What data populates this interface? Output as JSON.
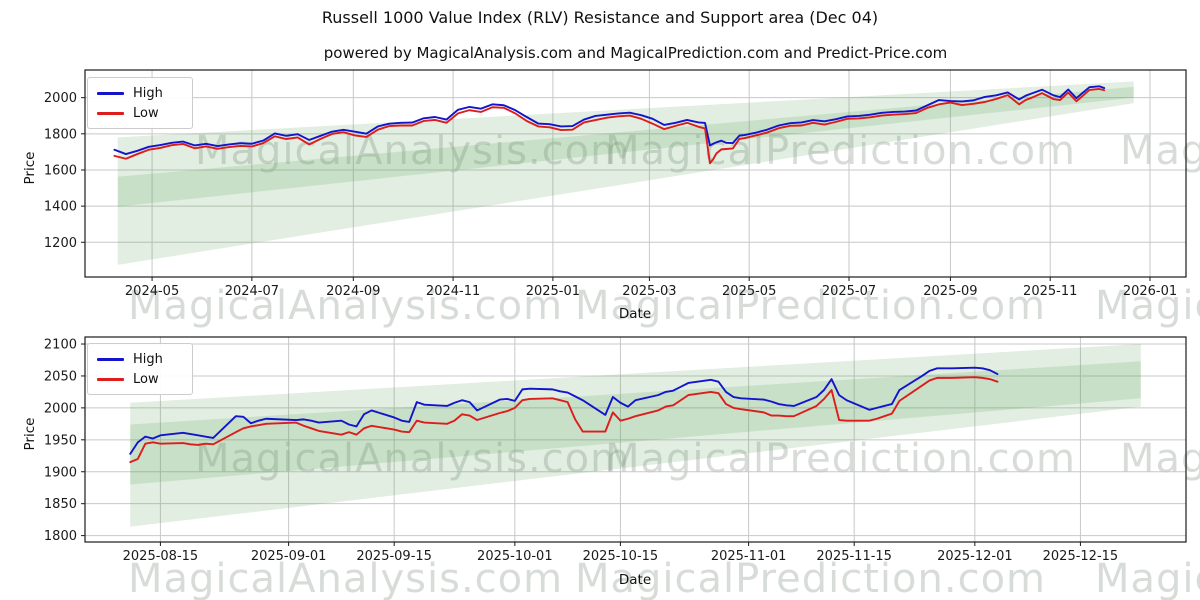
{
  "header": {
    "title": "Russell 1000 Value Index (RLV) Resistance and Support area (Dec 04)",
    "subtitle": "powered by MagicalAnalysis.com and MagicalPrediction.com and Predict-Price.com"
  },
  "watermarks": {
    "left": "MagicalAnalysis.com",
    "right": "MagicalPrediction.com",
    "partial": "MagicalAnalysis.com"
  },
  "legend": {
    "high": "High",
    "low": "Low"
  },
  "colors": {
    "high": "#1414cc",
    "low": "#dd1c1c",
    "band": "rgba(88,158,88,0.18)",
    "grid": "#c8c8c8",
    "axis": "#1a1a1a",
    "watermark": "rgba(125,140,125,0.30)"
  },
  "chart_data": [
    {
      "type": "line",
      "name": "overview",
      "xlabel": "Date",
      "ylabel": "Price",
      "legend_position": "upper left",
      "grid": true,
      "xlim": [
        "2024-03-21",
        "2026-01-23"
      ],
      "ylim": [
        1008,
        2153
      ],
      "x_ticks": [
        "2024-05",
        "2024-07",
        "2024-09",
        "2024-11",
        "2025-01",
        "2025-03",
        "2025-05",
        "2025-07",
        "2025-09",
        "2025-11",
        "2026-01"
      ],
      "x_tick_dates": [
        "2024-05-01",
        "2024-07-01",
        "2024-09-01",
        "2024-11-01",
        "2025-01-01",
        "2025-03-01",
        "2025-05-01",
        "2025-07-01",
        "2025-09-01",
        "2025-11-01",
        "2026-01-01"
      ],
      "y_ticks": [
        1200,
        1400,
        1600,
        1800,
        2000
      ],
      "x": [
        "2024-04-08",
        "2024-04-15",
        "2024-04-22",
        "2024-04-29",
        "2024-05-06",
        "2024-05-13",
        "2024-05-20",
        "2024-05-27",
        "2024-06-03",
        "2024-06-10",
        "2024-06-17",
        "2024-06-24",
        "2024-07-01",
        "2024-07-08",
        "2024-07-15",
        "2024-07-22",
        "2024-07-29",
        "2024-08-05",
        "2024-08-12",
        "2024-08-19",
        "2024-08-26",
        "2024-09-02",
        "2024-09-09",
        "2024-09-16",
        "2024-09-23",
        "2024-09-30",
        "2024-10-07",
        "2024-10-14",
        "2024-10-21",
        "2024-10-28",
        "2024-11-04",
        "2024-11-11",
        "2024-11-18",
        "2024-11-25",
        "2024-12-02",
        "2024-12-09",
        "2024-12-16",
        "2024-12-23",
        "2024-12-30",
        "2025-01-06",
        "2025-01-13",
        "2025-01-20",
        "2025-01-27",
        "2025-02-03",
        "2025-02-10",
        "2025-02-17",
        "2025-02-24",
        "2025-03-03",
        "2025-03-10",
        "2025-03-17",
        "2025-03-24",
        "2025-03-31",
        "2025-04-04",
        "2025-04-07",
        "2025-04-09",
        "2025-04-11",
        "2025-04-14",
        "2025-04-17",
        "2025-04-21",
        "2025-04-25",
        "2025-04-28",
        "2025-05-05",
        "2025-05-12",
        "2025-05-19",
        "2025-05-26",
        "2025-06-02",
        "2025-06-09",
        "2025-06-16",
        "2025-06-23",
        "2025-06-30",
        "2025-07-07",
        "2025-07-14",
        "2025-07-21",
        "2025-07-28",
        "2025-08-04",
        "2025-08-11",
        "2025-08-18",
        "2025-08-25",
        "2025-09-01",
        "2025-09-08",
        "2025-09-15",
        "2025-09-22",
        "2025-09-29",
        "2025-10-06",
        "2025-10-13",
        "2025-10-17",
        "2025-10-20",
        "2025-10-27",
        "2025-11-03",
        "2025-11-07",
        "2025-11-12",
        "2025-11-17",
        "2025-11-21",
        "2025-11-25",
        "2025-12-01",
        "2025-12-04"
      ],
      "series": [
        {
          "name": "High",
          "color_key": "high",
          "values": [
            1712,
            1688,
            1706,
            1728,
            1738,
            1750,
            1757,
            1736,
            1745,
            1732,
            1741,
            1748,
            1745,
            1763,
            1802,
            1789,
            1798,
            1766,
            1789,
            1812,
            1822,
            1812,
            1801,
            1841,
            1856,
            1861,
            1862,
            1886,
            1893,
            1879,
            1933,
            1949,
            1939,
            1963,
            1958,
            1931,
            1893,
            1857,
            1853,
            1841,
            1843,
            1879,
            1899,
            1906,
            1913,
            1917,
            1903,
            1883,
            1849,
            1861,
            1877,
            1863,
            1860,
            1736,
            1745,
            1753,
            1762,
            1750,
            1749,
            1790,
            1793,
            1806,
            1823,
            1846,
            1859,
            1863,
            1876,
            1869,
            1881,
            1896,
            1899,
            1906,
            1916,
            1921,
            1923,
            1929,
            1958,
            1987,
            1981,
            1979,
            1985,
            2004,
            2013,
            2029,
            1990,
            2011,
            2021,
            2044,
            2013,
            2003,
            2045,
            1997,
            2028,
            2058,
            2063,
            2053
          ]
        },
        {
          "name": "Low",
          "color_key": "low",
          "values": [
            1678,
            1662,
            1688,
            1712,
            1722,
            1737,
            1744,
            1720,
            1730,
            1717,
            1727,
            1733,
            1730,
            1749,
            1786,
            1771,
            1780,
            1741,
            1772,
            1799,
            1809,
            1791,
            1783,
            1823,
            1843,
            1846,
            1846,
            1871,
            1877,
            1861,
            1913,
            1931,
            1921,
            1947,
            1944,
            1913,
            1871,
            1841,
            1836,
            1821,
            1823,
            1863,
            1876,
            1889,
            1897,
            1901,
            1883,
            1856,
            1826,
            1844,
            1861,
            1839,
            1830,
            1637,
            1660,
            1692,
            1714,
            1716,
            1719,
            1772,
            1776,
            1791,
            1807,
            1831,
            1844,
            1846,
            1861,
            1851,
            1866,
            1883,
            1885,
            1891,
            1901,
            1906,
            1909,
            1915,
            1944,
            1963,
            1973,
            1959,
            1966,
            1976,
            1993,
            2014,
            1963,
            1987,
            1997,
            2025,
            1992,
            1987,
            2028,
            1980,
            2011,
            2043,
            2048,
            2041
          ]
        }
      ],
      "bands": [
        {
          "name": "support-area",
          "x": [
            "2024-04-10",
            "2025-12-22"
          ],
          "bottom": [
            1075,
            1970
          ],
          "top": [
            1563,
            2060
          ]
        },
        {
          "name": "resistance-area",
          "x": [
            "2024-04-10",
            "2025-12-22"
          ],
          "bottom": [
            1397,
            2000
          ],
          "top": [
            1780,
            2090
          ]
        }
      ]
    },
    {
      "type": "line",
      "name": "recent-detail",
      "xlabel": "Date",
      "ylabel": "Price",
      "legend_position": "upper left",
      "grid": true,
      "xlim": [
        "2025-08-05",
        "2025-12-29"
      ],
      "ylim": [
        1790,
        2111
      ],
      "x_ticks": [
        "2025-08-15",
        "2025-09-01",
        "2025-09-15",
        "2025-10-01",
        "2025-10-15",
        "2025-11-01",
        "2025-11-15",
        "2025-12-01",
        "2025-12-15"
      ],
      "x_tick_dates": [
        "2025-08-15",
        "2025-09-01",
        "2025-09-15",
        "2025-10-01",
        "2025-10-15",
        "2025-11-01",
        "2025-11-15",
        "2025-12-01",
        "2025-12-15"
      ],
      "y_ticks": [
        1800,
        1850,
        1900,
        1950,
        2000,
        2050,
        2100
      ],
      "x": [
        "2025-08-11",
        "2025-08-12",
        "2025-08-13",
        "2025-08-14",
        "2025-08-15",
        "2025-08-18",
        "2025-08-19",
        "2025-08-20",
        "2025-08-21",
        "2025-08-22",
        "2025-08-25",
        "2025-08-26",
        "2025-08-27",
        "2025-08-28",
        "2025-08-29",
        "2025-09-02",
        "2025-09-03",
        "2025-09-04",
        "2025-09-05",
        "2025-09-08",
        "2025-09-09",
        "2025-09-10",
        "2025-09-11",
        "2025-09-12",
        "2025-09-15",
        "2025-09-16",
        "2025-09-17",
        "2025-09-18",
        "2025-09-19",
        "2025-09-22",
        "2025-09-23",
        "2025-09-24",
        "2025-09-25",
        "2025-09-26",
        "2025-09-29",
        "2025-09-30",
        "2025-10-01",
        "2025-10-02",
        "2025-10-03",
        "2025-10-06",
        "2025-10-07",
        "2025-10-08",
        "2025-10-09",
        "2025-10-10",
        "2025-10-13",
        "2025-10-14",
        "2025-10-15",
        "2025-10-16",
        "2025-10-17",
        "2025-10-20",
        "2025-10-21",
        "2025-10-22",
        "2025-10-23",
        "2025-10-24",
        "2025-10-27",
        "2025-10-28",
        "2025-10-29",
        "2025-10-30",
        "2025-10-31",
        "2025-11-03",
        "2025-11-04",
        "2025-11-05",
        "2025-11-06",
        "2025-11-07",
        "2025-11-10",
        "2025-11-11",
        "2025-11-12",
        "2025-11-13",
        "2025-11-14",
        "2025-11-17",
        "2025-11-18",
        "2025-11-19",
        "2025-11-20",
        "2025-11-21",
        "2025-11-24",
        "2025-11-25",
        "2025-11-26",
        "2025-11-28",
        "2025-12-01",
        "2025-12-02",
        "2025-12-03",
        "2025-12-04"
      ],
      "series": [
        {
          "name": "High",
          "color_key": "high",
          "values": [
            1928,
            1946,
            1955,
            1952,
            1957,
            1961,
            1959,
            1957,
            1955,
            1953,
            1987,
            1986,
            1976,
            1980,
            1983,
            1981,
            1982,
            1980,
            1977,
            1980,
            1974,
            1971,
            1990,
            1996,
            1985,
            1980,
            1978,
            2009,
            2005,
            2003,
            2008,
            2012,
            2009,
            1996,
            2013,
            2014,
            2011,
            2029,
            2030,
            2029,
            2026,
            2024,
            2018,
            2012,
            1989,
            2017,
            2008,
            2002,
            2012,
            2020,
            2025,
            2027,
            2033,
            2039,
            2044,
            2041,
            2025,
            2017,
            2015,
            2013,
            2010,
            2006,
            2004,
            2003,
            2017,
            2028,
            2045,
            2020,
            2012,
            1997,
            2000,
            2003,
            2006,
            2028,
            2050,
            2058,
            2062,
            2062,
            2063,
            2062,
            2059,
            2053
          ]
        },
        {
          "name": "Low",
          "color_key": "low",
          "values": [
            1915,
            1920,
            1944,
            1946,
            1944,
            1945,
            1943,
            1942,
            1944,
            1943,
            1962,
            1968,
            1971,
            1973,
            1975,
            1977,
            1972,
            1968,
            1964,
            1958,
            1962,
            1958,
            1968,
            1972,
            1966,
            1963,
            1962,
            1980,
            1977,
            1975,
            1980,
            1990,
            1988,
            1981,
            1992,
            1995,
            2000,
            2012,
            2014,
            2015,
            2012,
            2009,
            1982,
            1963,
            1963,
            1993,
            1980,
            1983,
            1987,
            1996,
            2002,
            2004,
            2012,
            2020,
            2025,
            2023,
            2006,
            2000,
            1998,
            1993,
            1988,
            1988,
            1987,
            1987,
            2003,
            2014,
            2028,
            1981,
            1980,
            1980,
            1983,
            1987,
            1991,
            2011,
            2035,
            2043,
            2047,
            2047,
            2048,
            2047,
            2045,
            2041
          ]
        }
      ],
      "bands": [
        {
          "name": "support-area",
          "x": [
            "2025-08-11",
            "2025-12-23"
          ],
          "bottom": [
            1814,
            2002
          ],
          "top": [
            1974,
            2073
          ]
        },
        {
          "name": "resistance-area",
          "x": [
            "2025-08-11",
            "2025-12-23"
          ],
          "bottom": [
            1880,
            2015
          ],
          "top": [
            2008,
            2100
          ]
        }
      ]
    }
  ]
}
